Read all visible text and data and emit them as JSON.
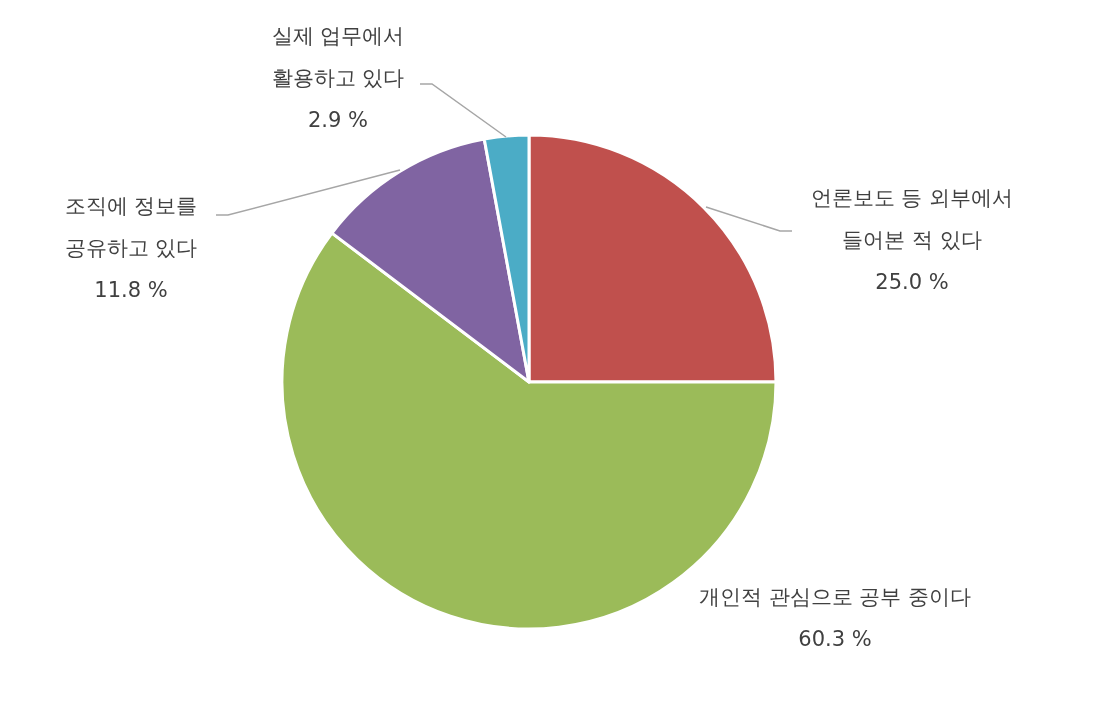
{
  "chart_data": {
    "type": "pie",
    "categories": [
      "언론보도 등 외부에서 들어본 적 있다",
      "개인적 관심으로 공부 중이다",
      "조직에 정보를 공유하고 있다",
      "실제 업무에서 활용하고 있다"
    ],
    "values": [
      25.0,
      60.3,
      11.8,
      2.9
    ],
    "colors": [
      "#c0504d",
      "#9bbb59",
      "#8064a2",
      "#4bacc6"
    ],
    "value_labels": [
      "25.0 %",
      "60.3 %",
      "11.8 %",
      "2.9 %"
    ]
  }
}
